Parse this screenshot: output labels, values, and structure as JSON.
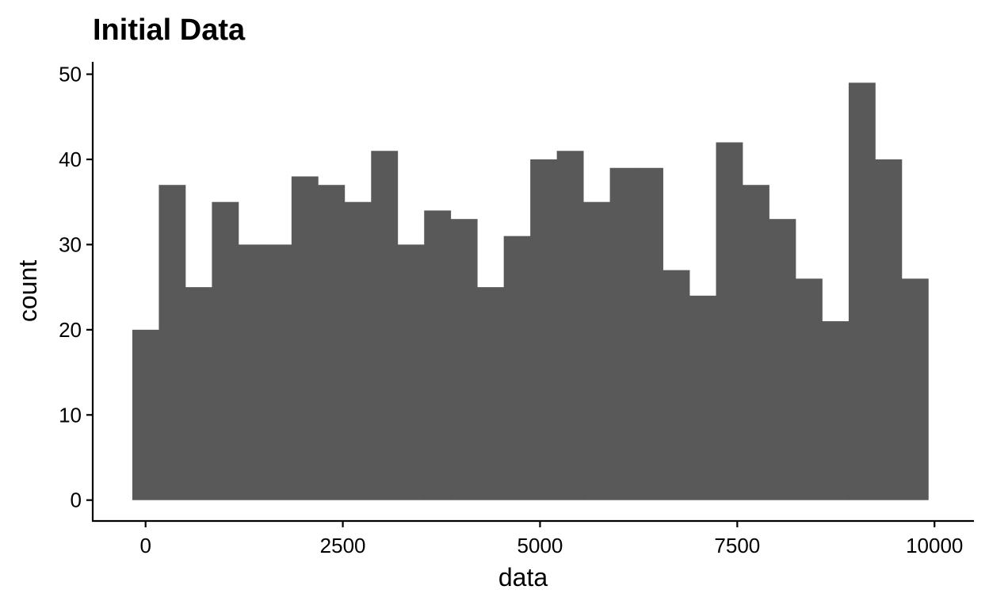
{
  "colors": {
    "bar_fill": "#595959",
    "axis_line": "#000000",
    "background": "#ffffff"
  },
  "chart_data": {
    "type": "histogram",
    "title": "Initial Data",
    "xlabel": "data",
    "ylabel": "count",
    "bin_width": 336.3,
    "first_bin_start": -168,
    "bins": [
      {
        "x_start": -168.0,
        "x_end": 168.3,
        "count": 20
      },
      {
        "x_start": 168.3,
        "x_end": 504.6,
        "count": 37
      },
      {
        "x_start": 504.6,
        "x_end": 840.9,
        "count": 25
      },
      {
        "x_start": 840.9,
        "x_end": 1177.2,
        "count": 35
      },
      {
        "x_start": 1177.2,
        "x_end": 1513.5,
        "count": 30
      },
      {
        "x_start": 1513.5,
        "x_end": 1849.8,
        "count": 30
      },
      {
        "x_start": 1849.8,
        "x_end": 2186.1,
        "count": 38
      },
      {
        "x_start": 2186.1,
        "x_end": 2522.4,
        "count": 37
      },
      {
        "x_start": 2522.4,
        "x_end": 2858.7,
        "count": 35
      },
      {
        "x_start": 2858.7,
        "x_end": 3195.0,
        "count": 41
      },
      {
        "x_start": 3195.0,
        "x_end": 3531.3,
        "count": 30
      },
      {
        "x_start": 3531.3,
        "x_end": 3867.6,
        "count": 34
      },
      {
        "x_start": 3867.6,
        "x_end": 4203.9,
        "count": 33
      },
      {
        "x_start": 4203.9,
        "x_end": 4540.2,
        "count": 25
      },
      {
        "x_start": 4540.2,
        "x_end": 4876.5,
        "count": 31
      },
      {
        "x_start": 4876.5,
        "x_end": 5212.8,
        "count": 40
      },
      {
        "x_start": 5212.8,
        "x_end": 5549.1,
        "count": 41
      },
      {
        "x_start": 5549.1,
        "x_end": 5885.4,
        "count": 35
      },
      {
        "x_start": 5885.4,
        "x_end": 6221.7,
        "count": 39
      },
      {
        "x_start": 6221.7,
        "x_end": 6558.0,
        "count": 39
      },
      {
        "x_start": 6558.0,
        "x_end": 6894.3,
        "count": 27
      },
      {
        "x_start": 6894.3,
        "x_end": 7230.6,
        "count": 24
      },
      {
        "x_start": 7230.6,
        "x_end": 7566.9,
        "count": 42
      },
      {
        "x_start": 7566.9,
        "x_end": 7903.2,
        "count": 37
      },
      {
        "x_start": 7903.2,
        "x_end": 8239.5,
        "count": 33
      },
      {
        "x_start": 8239.5,
        "x_end": 8575.8,
        "count": 26
      },
      {
        "x_start": 8575.8,
        "x_end": 8912.1,
        "count": 21
      },
      {
        "x_start": 8912.1,
        "x_end": 9248.4,
        "count": 49
      },
      {
        "x_start": 9248.4,
        "x_end": 9584.7,
        "count": 40
      },
      {
        "x_start": 9584.7,
        "x_end": 9921.0,
        "count": 26
      }
    ],
    "x_ticks": [
      0,
      2500,
      5000,
      7500,
      10000
    ],
    "x_tick_labels": [
      "0",
      "2500",
      "5000",
      "7500",
      "10000"
    ],
    "y_ticks": [
      0,
      10,
      20,
      30,
      40,
      50
    ],
    "y_tick_labels": [
      "0",
      "10",
      "20",
      "30",
      "40",
      "50"
    ],
    "xlim": [
      -670,
      10500
    ],
    "ylim": [
      -2.45,
      51.45
    ],
    "grid": false,
    "legend": "none"
  }
}
